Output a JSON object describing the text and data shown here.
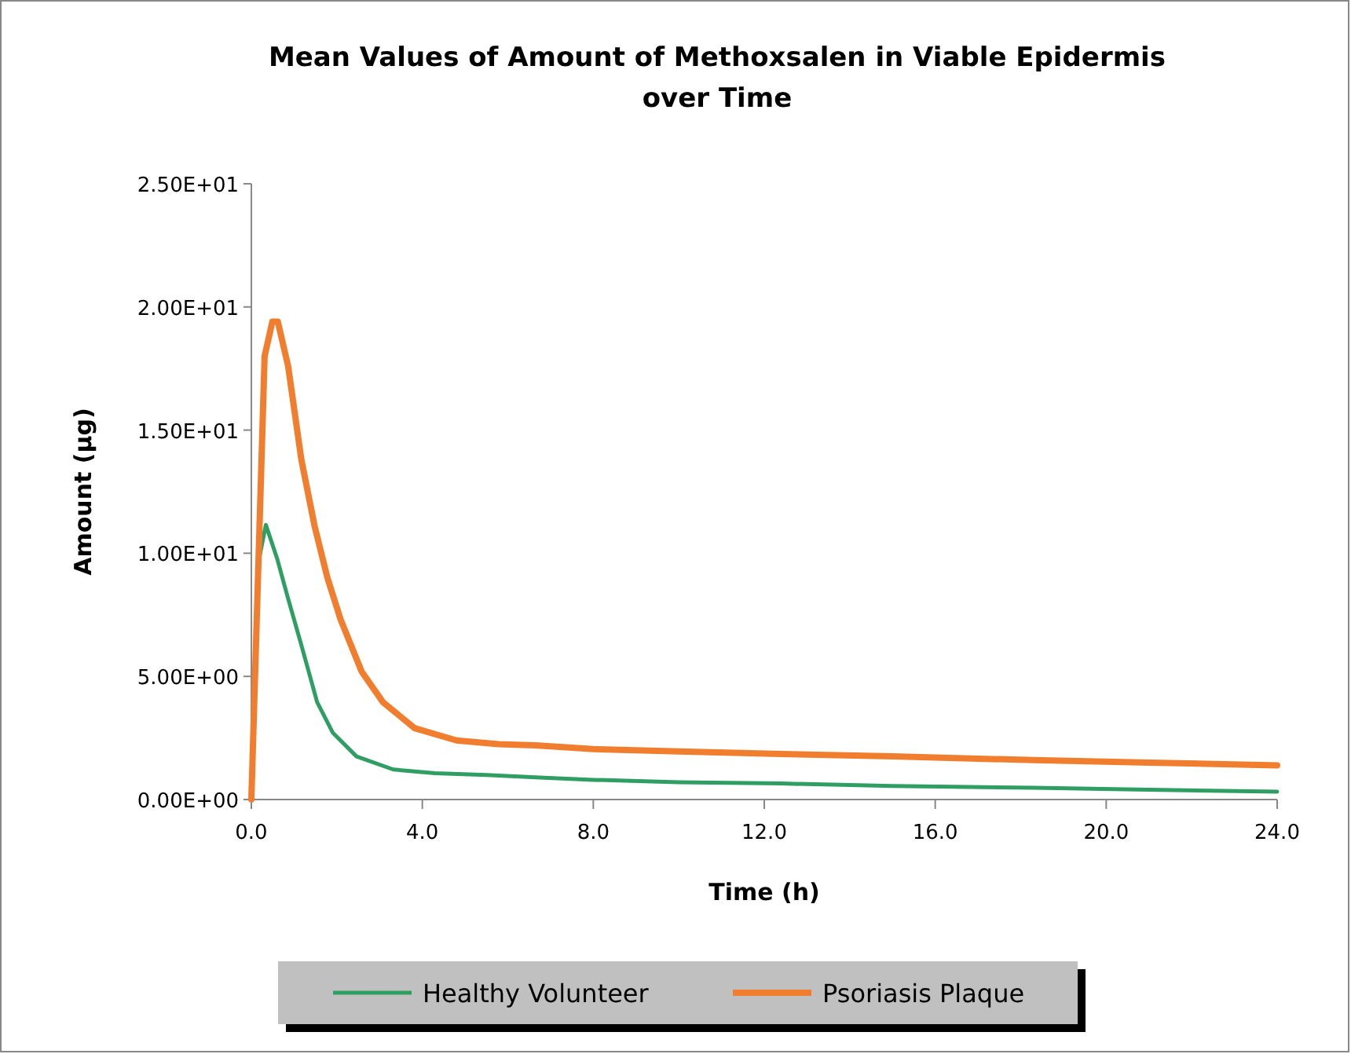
{
  "chart_data": {
    "type": "line",
    "title": "Mean Values of Amount of Methoxsalen in Viable Epidermis over Time",
    "xlabel": "Time (h)",
    "ylabel": "Amount (µg)",
    "xlim": [
      0,
      24
    ],
    "xticks": [
      {
        "value": 0,
        "label": "0.0"
      },
      {
        "value": 4,
        "label": "4.0"
      },
      {
        "value": 8,
        "label": "8.0"
      },
      {
        "value": 12,
        "label": "12.0"
      },
      {
        "value": 16,
        "label": "16.0"
      },
      {
        "value": 20,
        "label": "20.0"
      },
      {
        "value": 24,
        "label": "24.0"
      }
    ],
    "ylim": [
      0,
      25
    ],
    "yticks": [
      {
        "value": 0,
        "label": "0.00E+00"
      },
      {
        "value": 5,
        "label": "5.00E+00"
      },
      {
        "value": 10,
        "label": "1.00E+01"
      },
      {
        "value": 15,
        "label": "1.50E+01"
      },
      {
        "value": 20,
        "label": "2.00E+01"
      },
      {
        "value": 25,
        "label": "2.50E+01"
      }
    ],
    "grid": false,
    "legend": "bottom",
    "marker": "none",
    "line_style": "solid",
    "series": [
      {
        "name": "Healthy Volunteer",
        "color": "#2e9e63",
        "x": [
          0,
          0.15,
          0.34,
          0.6,
          0.86,
          1.17,
          1.54,
          1.91,
          2.46,
          3.32,
          4.3,
          5.5,
          6.65,
          8,
          10,
          12.4,
          15,
          18.3,
          21,
          24
        ],
        "values": [
          0,
          9.5,
          11.15,
          9.8,
          8.16,
          6.27,
          3.95,
          2.7,
          1.75,
          1.22,
          1.07,
          1.0,
          0.9,
          0.8,
          0.7,
          0.65,
          0.55,
          0.48,
          0.4,
          0.32
        ]
      },
      {
        "name": "Psoriasis Plaque",
        "color": "#f07e2e",
        "x": [
          0,
          0.31,
          0.49,
          0.62,
          0.86,
          1.17,
          1.48,
          1.78,
          2.09,
          2.58,
          3.08,
          3.82,
          4.8,
          5.78,
          6.65,
          8,
          10,
          12.4,
          15,
          18.3,
          21,
          24
        ],
        "values": [
          0,
          18.0,
          19.4,
          19.4,
          17.6,
          13.8,
          11.1,
          9.0,
          7.3,
          5.2,
          3.95,
          2.9,
          2.4,
          2.25,
          2.2,
          2.05,
          1.95,
          1.85,
          1.75,
          1.6,
          1.5,
          1.39
        ]
      }
    ]
  }
}
